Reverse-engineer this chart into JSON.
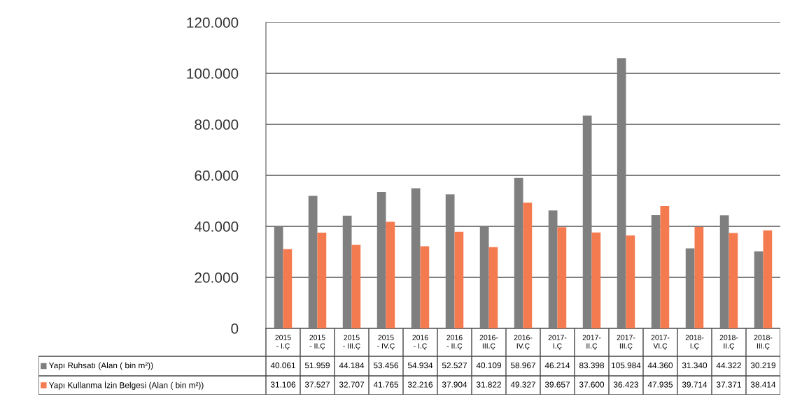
{
  "chart_data": {
    "type": "bar",
    "categories": [
      "2015\n- I.Ç",
      "2015\n- II.Ç",
      "2015\n- III.Ç",
      "2015\n- IV.Ç",
      "2016\n- I.Ç",
      "2016\n- II.Ç",
      "2016-\nIII.Ç",
      "2016-\nIV.Ç",
      "2017-\nI.Ç",
      "2017-\nII.Ç",
      "2017-\nIII.Ç",
      "2017-\nVI.Ç",
      "2018-\nI.Ç",
      "2018-\nII.Ç",
      "2018-\nIII.Ç"
    ],
    "series": [
      {
        "name": "Yapı Ruhsatı (Alan ( bin m²))",
        "color": "#7f7f7f",
        "values": [
          40061,
          51959,
          44184,
          53456,
          54934,
          52527,
          40109,
          58967,
          46214,
          83398,
          105984,
          44360,
          31340,
          44322,
          30219
        ],
        "value_labels": [
          "40.061",
          "51.959",
          "44.184",
          "53.456",
          "54.934",
          "52.527",
          "40.109",
          "58.967",
          "46.214",
          "83.398",
          "105.984",
          "44.360",
          "31.340",
          "44.322",
          "30.219"
        ]
      },
      {
        "name": "Yapı Kullanma İzin Belgesi (Alan ( bin m²))",
        "color": "#f47a50",
        "values": [
          31106,
          37527,
          32707,
          41765,
          32216,
          37904,
          31822,
          49327,
          39657,
          37600,
          36423,
          47935,
          39714,
          37371,
          38414
        ],
        "value_labels": [
          "31.106",
          "37.527",
          "32.707",
          "41.765",
          "32.216",
          "37.904",
          "31.822",
          "49.327",
          "39.657",
          "37.600",
          "36.423",
          "47.935",
          "39.714",
          "37.371",
          "38.414"
        ]
      }
    ],
    "ylim": [
      0,
      120000
    ],
    "yticks": [
      {
        "value": 0,
        "label": "0"
      },
      {
        "value": 20000,
        "label": "20.000"
      },
      {
        "value": 40000,
        "label": "40.000"
      },
      {
        "value": 60000,
        "label": "60.000"
      },
      {
        "value": 80000,
        "label": "80.000"
      },
      {
        "value": 100000,
        "label": "100.000"
      },
      {
        "value": 120000,
        "label": "120.000"
      }
    ],
    "grid": "y",
    "legend": "bottom left"
  }
}
